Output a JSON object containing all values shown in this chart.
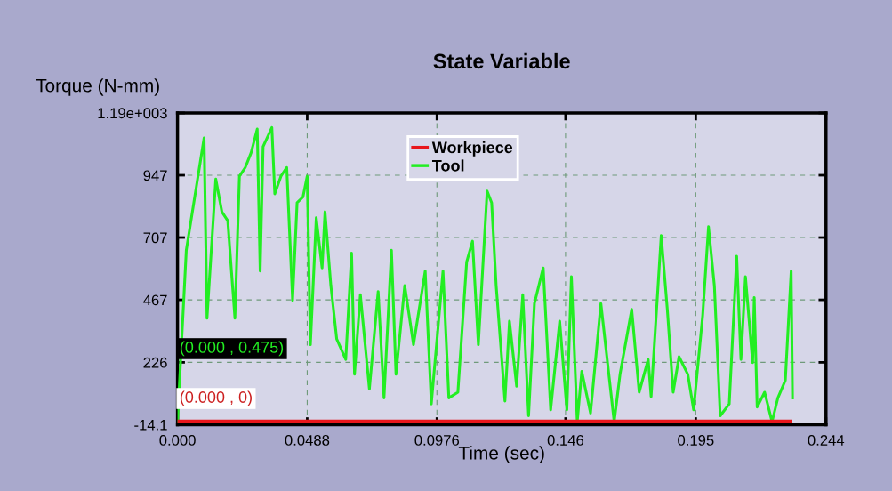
{
  "chart_data": {
    "type": "line",
    "title": "State Variable",
    "xlabel": "Time (sec)",
    "ylabel": "Torque (N-mm)",
    "xlim": [
      0,
      0.244
    ],
    "xticks": [
      {
        "value": 0,
        "label": "0.000"
      },
      0.0488,
      0.0976,
      0.146,
      0.195,
      0.244
    ],
    "ylim": [
      -14.1,
      1187
    ],
    "yticks": [
      -14.1,
      226,
      467,
      707,
      947,
      {
        "value": 1187,
        "label": "1.19e+003"
      }
    ],
    "grid": true,
    "legend": "top",
    "marker": "none",
    "line_style": "solid",
    "annotations": [
      "(0.000 , 0.475)",
      "(0.000 , 0)"
    ],
    "series": [
      {
        "name": "Workpiece",
        "color": "#e8161b",
        "x": [
          0,
          0.2308
        ],
        "values": [
          0,
          0
        ]
      },
      {
        "name": "Tool",
        "color": "#22ee22",
        "x": [
          0,
          0.0033,
          0.01,
          0.0111,
          0.0144,
          0.0167,
          0.0189,
          0.0216,
          0.0233,
          0.0255,
          0.0277,
          0.03,
          0.0311,
          0.0322,
          0.0355,
          0.0366,
          0.0389,
          0.0411,
          0.0433,
          0.045,
          0.0472,
          0.0488,
          0.05,
          0.0522,
          0.0544,
          0.0555,
          0.0577,
          0.0599,
          0.0633,
          0.0655,
          0.0666,
          0.0688,
          0.0722,
          0.0755,
          0.0777,
          0.0805,
          0.0822,
          0.0855,
          0.0888,
          0.0932,
          0.0955,
          0.0999,
          0.1021,
          0.1055,
          0.1088,
          0.111,
          0.1132,
          0.1165,
          0.1182,
          0.1199,
          0.1232,
          0.1249,
          0.1276,
          0.1299,
          0.1321,
          0.1343,
          0.1376,
          0.1404,
          0.1438,
          0.1465,
          0.1482,
          0.1504,
          0.1521,
          0.1554,
          0.1593,
          0.1643,
          0.1665,
          0.1709,
          0.1737,
          0.1771,
          0.1782,
          0.182,
          0.1843,
          0.1865,
          0.1887,
          0.192,
          0.1942,
          0.1976,
          0.1998,
          0.202,
          0.2042,
          0.2076,
          0.2104,
          0.212,
          0.2137,
          0.2164,
          0.217,
          0.2181,
          0.2209,
          0.2237,
          0.2259,
          0.2287,
          0.2309,
          0.2314
        ],
        "values": [
          0,
          658,
          1091,
          396,
          932,
          806,
          772,
          396,
          943,
          977,
          1034,
          1125,
          578,
          1057,
          1131,
          875,
          943,
          977,
          465,
          841,
          863,
          943,
          294,
          783,
          590,
          806,
          522,
          316,
          237,
          647,
          180,
          487,
          123,
          499,
          89,
          658,
          180,
          522,
          294,
          578,
          66,
          578,
          89,
          111,
          613,
          693,
          294,
          886,
          841,
          522,
          77,
          385,
          134,
          487,
          20,
          453,
          590,
          43,
          385,
          43,
          556,
          -3,
          191,
          31,
          453,
          -3,
          180,
          430,
          111,
          237,
          94,
          715,
          430,
          111,
          248,
          180,
          43,
          407,
          749,
          522,
          20,
          66,
          635,
          237,
          556,
          225,
          476,
          54,
          111,
          -3,
          89,
          157,
          578,
          89
        ]
      }
    ]
  }
}
